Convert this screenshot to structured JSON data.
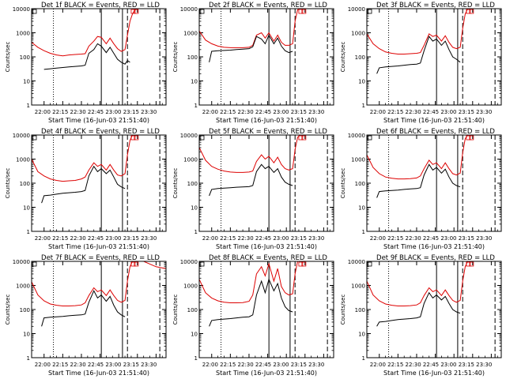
{
  "chart_data": {
    "type": "line",
    "title_template": "Det {det} BLACK = Events, RED = LLD",
    "xlabel": "Start Time (16-Jun-03 21:51:40)",
    "ylabel": "Counts/sec",
    "y_scale": "log",
    "ylim": [
      1,
      10000
    ],
    "y_tick_labels": [
      "1",
      "10",
      "100",
      "1000",
      "10000"
    ],
    "x_tick_labels": [
      "22:00",
      "22:15",
      "22:30",
      "22:45",
      "23:00",
      "23:15",
      "23:30"
    ],
    "x_tick_minutes": [
      0,
      15,
      30,
      45,
      60,
      75,
      90
    ],
    "xlim_minutes": [
      -10,
      98
    ],
    "x_label_row": "22:00  22:15  22:30  22:45  23:00  23:15  23:30",
    "marker_lines": [
      {
        "style": "dotted",
        "minute": 7.5
      },
      {
        "style": "solid",
        "minute": 46
      },
      {
        "style": "solid",
        "minute": 63
      },
      {
        "style": "dashed",
        "minute": 67
      },
      {
        "style": "dashed",
        "minute": 93
      }
    ],
    "series": [
      {
        "name": "Events",
        "color": "#000000"
      },
      {
        "name": "LLD",
        "color": "#dd0000"
      }
    ],
    "panels": [
      {
        "det": "1f",
        "events_min": [
          0,
          5,
          10,
          15,
          20,
          25,
          30,
          33,
          36,
          40,
          43,
          46,
          50,
          53,
          56,
          59,
          62,
          65,
          67,
          69
        ],
        "events": [
          30,
          32,
          34,
          36,
          38,
          40,
          42,
          45,
          140,
          200,
          350,
          280,
          150,
          250,
          140,
          80,
          60,
          50,
          70,
          60
        ],
        "lld_min": [
          -10,
          -5,
          0,
          5,
          10,
          15,
          20,
          25,
          30,
          33,
          36,
          40,
          43,
          46,
          50,
          53,
          56,
          59,
          62,
          65,
          67,
          69,
          71,
          73,
          76,
          80,
          90,
          98
        ],
        "lld": [
          400,
          250,
          180,
          140,
          120,
          110,
          120,
          125,
          130,
          135,
          280,
          450,
          700,
          650,
          350,
          600,
          350,
          220,
          170,
          200,
          800,
          3000,
          6000,
          9000,
          10000,
          10000,
          10000,
          10000
        ]
      },
      {
        "det": "2f",
        "events_min": [
          -2,
          0,
          5,
          10,
          15,
          20,
          25,
          30,
          33,
          36,
          40,
          43,
          46,
          50,
          53,
          56,
          59,
          62,
          65
        ],
        "events": [
          60,
          170,
          180,
          185,
          190,
          200,
          210,
          220,
          260,
          700,
          550,
          350,
          800,
          350,
          600,
          280,
          180,
          150,
          170
        ],
        "lld_min": [
          -10,
          -5,
          0,
          5,
          10,
          15,
          20,
          25,
          30,
          33,
          36,
          40,
          43,
          46,
          50,
          53,
          56,
          59,
          62,
          65,
          67,
          69,
          71,
          73,
          76,
          80,
          90,
          98
        ],
        "lld": [
          1200,
          500,
          350,
          280,
          250,
          240,
          240,
          240,
          250,
          300,
          800,
          1000,
          600,
          1000,
          450,
          800,
          400,
          300,
          300,
          350,
          3000,
          9000,
          10000,
          10000,
          10000,
          10000,
          10000,
          10000
        ]
      },
      {
        "det": "3f",
        "events_min": [
          -2,
          0,
          5,
          10,
          15,
          20,
          25,
          30,
          33,
          36,
          40,
          43,
          46,
          50,
          53,
          56,
          59,
          62,
          65
        ],
        "events": [
          20,
          35,
          38,
          40,
          42,
          45,
          48,
          50,
          55,
          180,
          700,
          450,
          550,
          300,
          450,
          200,
          100,
          80,
          60
        ],
        "lld_min": [
          -10,
          -5,
          0,
          5,
          10,
          15,
          20,
          25,
          30,
          33,
          36,
          40,
          43,
          46,
          50,
          53,
          56,
          59,
          62,
          65,
          67,
          69,
          71,
          73,
          76,
          80,
          90,
          98
        ],
        "lld": [
          900,
          350,
          220,
          160,
          140,
          130,
          130,
          135,
          140,
          150,
          300,
          900,
          700,
          800,
          450,
          750,
          400,
          250,
          220,
          250,
          1500,
          6000,
          10000,
          10000,
          10000,
          10000,
          10000,
          10000
        ]
      },
      {
        "det": "4f",
        "events_min": [
          -2,
          0,
          5,
          10,
          15,
          20,
          25,
          30,
          33,
          36,
          40,
          43,
          46,
          50,
          53,
          56,
          59,
          62,
          65
        ],
        "events": [
          15,
          30,
          32,
          35,
          38,
          40,
          42,
          45,
          50,
          200,
          500,
          300,
          400,
          250,
          350,
          180,
          90,
          70,
          60
        ],
        "lld_min": [
          -10,
          -5,
          0,
          5,
          10,
          15,
          20,
          25,
          30,
          33,
          36,
          40,
          43,
          46,
          50,
          53,
          56,
          59,
          62,
          65,
          67,
          69,
          71,
          73,
          76,
          80,
          90,
          98
        ],
        "lld": [
          1000,
          300,
          200,
          150,
          130,
          120,
          125,
          130,
          150,
          180,
          350,
          700,
          500,
          600,
          350,
          600,
          350,
          220,
          200,
          250,
          1500,
          6000,
          10000,
          10000,
          10000,
          10000,
          10000,
          10000
        ]
      },
      {
        "det": "5f",
        "events_min": [
          -2,
          0,
          5,
          10,
          15,
          20,
          25,
          30,
          33,
          36,
          40,
          43,
          46,
          50,
          53,
          56,
          59,
          62,
          65
        ],
        "events": [
          30,
          55,
          60,
          62,
          65,
          68,
          70,
          72,
          80,
          300,
          600,
          400,
          500,
          280,
          400,
          180,
          110,
          90,
          80
        ],
        "lld_min": [
          -10,
          -5,
          0,
          5,
          10,
          15,
          20,
          25,
          30,
          33,
          36,
          40,
          43,
          46,
          50,
          53,
          56,
          59,
          62,
          65,
          67,
          69,
          71,
          73,
          76,
          80,
          90,
          98
        ],
        "lld": [
          3000,
          900,
          500,
          380,
          320,
          290,
          280,
          280,
          290,
          320,
          800,
          1500,
          1000,
          1300,
          700,
          1200,
          600,
          400,
          350,
          400,
          2500,
          8000,
          10000,
          10000,
          10000,
          10000,
          10000,
          10000
        ]
      },
      {
        "det": "6f",
        "events_min": [
          -2,
          0,
          5,
          10,
          15,
          20,
          25,
          30,
          33,
          36,
          40,
          43,
          46,
          50,
          53,
          56,
          59,
          62,
          65
        ],
        "events": [
          25,
          45,
          48,
          50,
          52,
          55,
          58,
          60,
          65,
          220,
          600,
          350,
          450,
          260,
          380,
          180,
          100,
          80,
          70
        ],
        "lld_min": [
          -10,
          -5,
          0,
          5,
          10,
          15,
          20,
          25,
          30,
          33,
          36,
          40,
          43,
          46,
          50,
          53,
          56,
          59,
          62,
          65,
          67,
          69,
          71,
          73,
          76,
          80,
          90,
          98
        ],
        "lld": [
          1500,
          450,
          250,
          180,
          160,
          150,
          150,
          155,
          165,
          200,
          400,
          900,
          600,
          700,
          400,
          700,
          400,
          250,
          220,
          260,
          1800,
          7000,
          10000,
          10000,
          10000,
          10000,
          10000,
          10000
        ]
      },
      {
        "det": "7f",
        "events_min": [
          -2,
          0,
          5,
          10,
          15,
          20,
          25,
          30,
          33,
          36,
          40,
          43,
          46,
          50,
          53,
          56,
          59,
          62,
          65
        ],
        "events": [
          20,
          45,
          48,
          50,
          52,
          55,
          58,
          60,
          65,
          200,
          600,
          300,
          400,
          220,
          350,
          150,
          80,
          60,
          50
        ],
        "lld_min": [
          -10,
          -5,
          0,
          5,
          10,
          15,
          20,
          25,
          30,
          33,
          36,
          40,
          43,
          46,
          50,
          53,
          56,
          59,
          62,
          65,
          67,
          69,
          71,
          73,
          76,
          80,
          90,
          98
        ],
        "lld": [
          1400,
          400,
          230,
          170,
          150,
          140,
          140,
          145,
          155,
          190,
          380,
          800,
          550,
          650,
          380,
          650,
          380,
          240,
          200,
          240,
          1500,
          6000,
          10000,
          10000,
          10000,
          10000,
          6000,
          5000
        ]
      },
      {
        "det": "8f",
        "events_min": [
          -2,
          0,
          5,
          10,
          15,
          20,
          25,
          30,
          33,
          36,
          40,
          43,
          46,
          50,
          53,
          56,
          59,
          62,
          65
        ],
        "events": [
          20,
          35,
          38,
          40,
          42,
          45,
          48,
          50,
          60,
          400,
          1500,
          500,
          1800,
          600,
          1200,
          300,
          130,
          90,
          80
        ],
        "lld_min": [
          -10,
          -5,
          0,
          5,
          10,
          15,
          20,
          25,
          30,
          33,
          36,
          40,
          43,
          46,
          50,
          53,
          56,
          59,
          62,
          65,
          67,
          69,
          71,
          73,
          76,
          80,
          90,
          98
        ],
        "lld": [
          1800,
          500,
          300,
          230,
          200,
          190,
          190,
          195,
          220,
          400,
          3000,
          6000,
          2500,
          8000,
          1500,
          5000,
          900,
          500,
          400,
          450,
          3000,
          10000,
          10000,
          10000,
          10000,
          10000,
          10000,
          10000
        ]
      },
      {
        "det": "9f",
        "events_min": [
          -2,
          0,
          5,
          10,
          15,
          20,
          25,
          30,
          33,
          36,
          40,
          43,
          46,
          50,
          53,
          56,
          59,
          62,
          65
        ],
        "events": [
          20,
          30,
          32,
          35,
          38,
          40,
          42,
          45,
          50,
          180,
          500,
          300,
          400,
          250,
          350,
          180,
          100,
          80,
          70
        ],
        "lld_min": [
          -10,
          -5,
          0,
          5,
          10,
          15,
          20,
          25,
          30,
          33,
          36,
          40,
          43,
          46,
          50,
          53,
          56,
          59,
          62,
          65,
          67,
          69,
          71,
          73,
          76,
          80,
          90,
          98
        ],
        "lld": [
          1500,
          400,
          230,
          170,
          150,
          140,
          140,
          145,
          155,
          190,
          380,
          800,
          550,
          650,
          380,
          650,
          380,
          240,
          200,
          240,
          1500,
          6000,
          10000,
          10000,
          10000,
          10000,
          10000,
          10000
        ]
      }
    ]
  }
}
